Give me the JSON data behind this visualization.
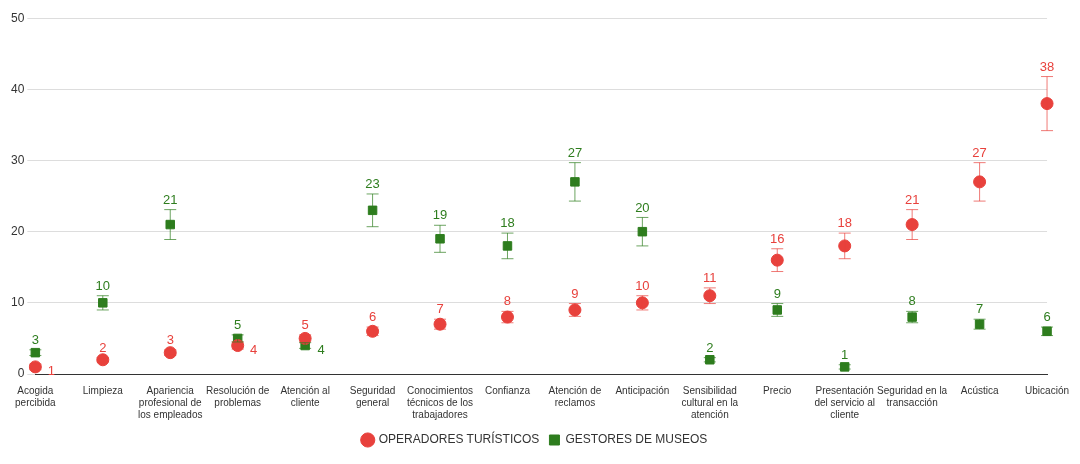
{
  "chart_data": {
    "type": "scatter",
    "categories": [
      "Acogida percibida",
      "Limpieza",
      "Apariencia profesional de los empleados",
      "Resolución de problemas",
      "Atención al cliente",
      "Seguridad general",
      "Conocimientos técnicos de los trabajadores",
      "Confianza",
      "Atención de reclamos",
      "Anticipación",
      "Sensibilidad cultural en la atención",
      "Precio",
      "Presentación del servicio al cliente",
      "Seguridad en la transacción",
      "Acústica",
      "Ubicación"
    ],
    "series": [
      {
        "name": "OPERADORES TURÍSTICOS",
        "color": "#e8413c",
        "marker": "circle",
        "values": [
          1,
          2,
          3,
          4,
          5,
          6,
          7,
          8,
          9,
          10,
          11,
          16,
          18,
          21,
          27,
          38
        ],
        "errors": [
          0.4,
          0.3,
          0.4,
          0.5,
          0.5,
          0.6,
          0.7,
          0.8,
          0.9,
          1,
          1.1,
          1.6,
          1.8,
          2.1,
          2.7,
          3.8
        ]
      },
      {
        "name": "GESTORES DE MUSEOS",
        "color": "#2e7d1e",
        "marker": "square",
        "values": [
          3,
          10,
          21,
          5,
          4,
          23,
          19,
          18,
          27,
          20,
          2,
          9,
          1,
          8,
          7,
          6
        ],
        "errors": [
          0.4,
          1,
          2.1,
          0.5,
          0.4,
          2.3,
          1.9,
          1.8,
          2.7,
          2,
          0.3,
          0.9,
          0.3,
          0.8,
          0.7,
          0.6
        ]
      }
    ],
    "ylim": [
      0,
      50
    ],
    "yticks": [
      0,
      10,
      20,
      30,
      40,
      50
    ],
    "grid": "y",
    "legend": "bottom",
    "data_labels": true
  }
}
